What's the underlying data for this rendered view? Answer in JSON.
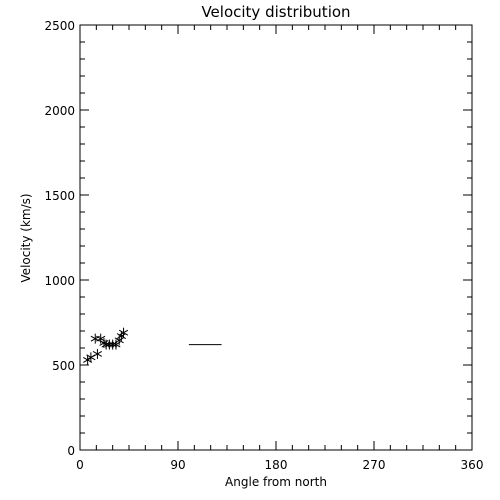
{
  "chart_data": {
    "type": "scatter",
    "title": "Velocity distribution",
    "xlabel": "Angle from north",
    "ylabel": "Velocity (km/s)",
    "xlim": [
      0,
      360
    ],
    "ylim": [
      0,
      2500
    ],
    "xticks": [
      0,
      90,
      180,
      270,
      360
    ],
    "yticks": [
      0,
      500,
      1000,
      1500,
      2000,
      2500
    ],
    "grid": false,
    "marker": "asterisk",
    "points": [
      {
        "x": 7,
        "y": 530
      },
      {
        "x": 10,
        "y": 545
      },
      {
        "x": 14,
        "y": 655
      },
      {
        "x": 16,
        "y": 565
      },
      {
        "x": 19,
        "y": 655
      },
      {
        "x": 22,
        "y": 630
      },
      {
        "x": 24,
        "y": 620
      },
      {
        "x": 27,
        "y": 620
      },
      {
        "x": 30,
        "y": 620
      },
      {
        "x": 33,
        "y": 620
      },
      {
        "x": 36,
        "y": 645
      },
      {
        "x": 38,
        "y": 670
      },
      {
        "x": 40,
        "y": 690
      }
    ],
    "segments": [
      {
        "x1": 100,
        "x2": 130,
        "y": 620
      }
    ]
  }
}
